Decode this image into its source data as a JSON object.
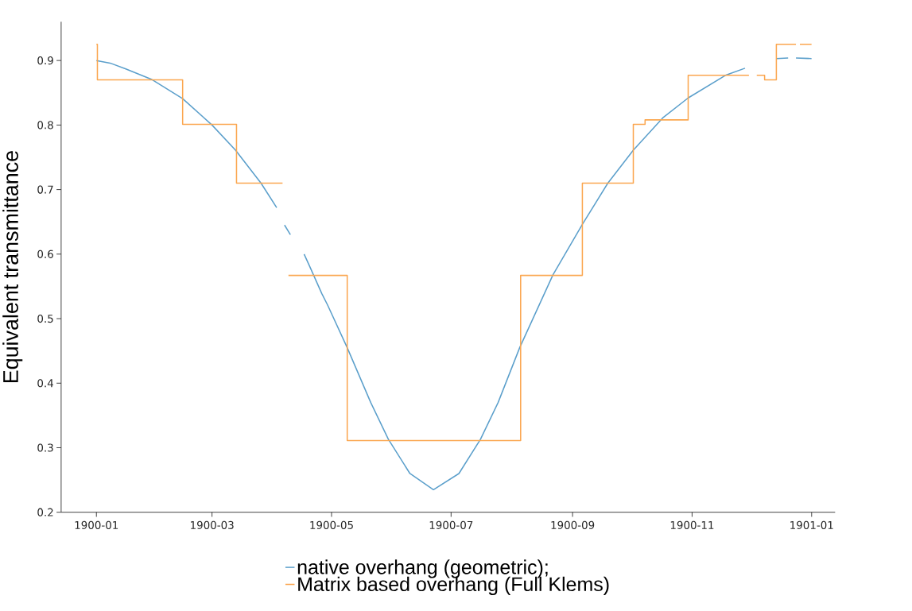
{
  "chart_data": {
    "type": "line",
    "ylabel": "Equivalent transmittance",
    "xlim": [
      "1899-12-14",
      "1901-01-13"
    ],
    "ylim": [
      0.2,
      0.96
    ],
    "xticks": [
      {
        "value": "1900-01-01",
        "label": "1900-01"
      },
      {
        "value": "1900-03-01",
        "label": "1900-03"
      },
      {
        "value": "1900-05-01",
        "label": "1900-05"
      },
      {
        "value": "1900-07-01",
        "label": "1900-07"
      },
      {
        "value": "1900-09-01",
        "label": "1900-09"
      },
      {
        "value": "1900-11-01",
        "label": "1900-11"
      },
      {
        "value": "1901-01-01",
        "label": "1901-01"
      }
    ],
    "yticks": [
      0.2,
      0.3,
      0.4,
      0.5,
      0.6,
      0.7,
      0.8,
      0.9
    ],
    "legend": "bottom",
    "grid": false,
    "series": [
      {
        "name": "native overhang (geometric);",
        "color": "#5b9fcb",
        "x": [
          "1900-01-01",
          "1900-01-08",
          "1900-01-16",
          "1900-01-29",
          "1900-02-14",
          "1900-03-01",
          "1900-03-13",
          "1900-03-26",
          "1900-04-03",
          "1900-04-05",
          "1900-04-07",
          "1900-04-10",
          "1900-04-14",
          "1900-04-17",
          "1900-04-20",
          "1900-04-26",
          "1900-04-29",
          "1900-05-09",
          "1900-05-21",
          "1900-05-30",
          "1900-06-10",
          "1900-06-22",
          "1900-07-05",
          "1900-07-16",
          "1900-07-25",
          "1900-08-05",
          "1900-08-22",
          "1900-09-06",
          "1900-09-19",
          "1900-10-02",
          "1900-10-17",
          "1900-10-30",
          "1900-11-18",
          "1900-11-28",
          "1900-11-30",
          "1900-12-14",
          "1900-12-20",
          "1900-12-22",
          "1900-12-24",
          "1900-12-31T23:00"
        ],
        "values": [
          0.9,
          0.896,
          0.887,
          0.871,
          0.841,
          0.8,
          0.761,
          0.71,
          0.672,
          null,
          0.645,
          0.63,
          null,
          0.6,
          0.58,
          0.539,
          0.521,
          0.455,
          0.37,
          0.313,
          0.26,
          0.235,
          0.26,
          0.313,
          0.37,
          0.455,
          0.568,
          0.646,
          0.71,
          0.761,
          0.811,
          0.842,
          0.877,
          0.888,
          null,
          0.903,
          0.904,
          null,
          0.904,
          0.903
        ]
      },
      {
        "name": "Matrix based overhang (Full Klems)",
        "type": "step",
        "color": "#fba64f",
        "x": [
          "1900-01-01",
          "1900-01-01T12:00",
          "1900-02-14",
          "1900-03-13T12:00",
          "1900-04-06",
          "1900-04-07",
          "1900-04-09",
          "1900-05-09",
          "1900-08-05T12:00",
          "1900-09-06",
          "1900-10-02",
          "1900-10-08",
          "1900-10-30",
          "1900-11-30",
          "1900-12-01",
          "1900-12-04",
          "1900-12-08",
          "1900-12-14",
          "1900-12-24",
          "1900-12-25",
          "1900-12-26",
          "1900-12-31T23:00"
        ],
        "values": [
          0.925,
          0.87,
          0.801,
          0.71,
          0.71,
          null,
          0.567,
          0.311,
          0.567,
          0.71,
          0.801,
          0.808,
          0.877,
          0.877,
          null,
          0.877,
          0.87,
          0.925,
          0.925,
          null,
          0.925,
          0.925
        ]
      }
    ]
  }
}
